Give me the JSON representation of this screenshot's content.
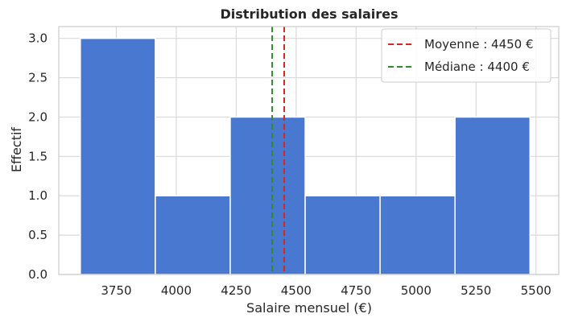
{
  "chart_data": {
    "type": "bar",
    "title": "Distribution des salaires",
    "xlabel": "Salaire mensuel (€)",
    "ylabel": "Effectif",
    "bins": [
      {
        "start": 3600,
        "end": 3912.5,
        "count": 3
      },
      {
        "start": 3912.5,
        "end": 4225,
        "count": 1
      },
      {
        "start": 4225,
        "end": 4537.5,
        "count": 2
      },
      {
        "start": 4537.5,
        "end": 4850,
        "count": 1
      },
      {
        "start": 4850,
        "end": 5162.5,
        "count": 1
      },
      {
        "start": 5162.5,
        "end": 5475,
        "count": 2
      }
    ],
    "xlim": [
      3510,
      5595
    ],
    "ylim": [
      0,
      3.15
    ],
    "xticks": [
      3750,
      4000,
      4250,
      4500,
      4750,
      5000,
      5250,
      5500
    ],
    "yticks": [
      0.0,
      0.5,
      1.0,
      1.5,
      2.0,
      2.5,
      3.0
    ],
    "ytick_labels": [
      "0.0",
      "0.5",
      "1.0",
      "1.5",
      "2.0",
      "2.5",
      "3.0"
    ],
    "mean": {
      "value": 4450,
      "label": "Moyenne : 4450 €",
      "color": "#d62728"
    },
    "median": {
      "value": 4400,
      "label": "Médiane : 4400 €",
      "color": "#2e8b2e"
    },
    "bar_color": "#4878d0",
    "grid": true,
    "legend": "top-right"
  }
}
